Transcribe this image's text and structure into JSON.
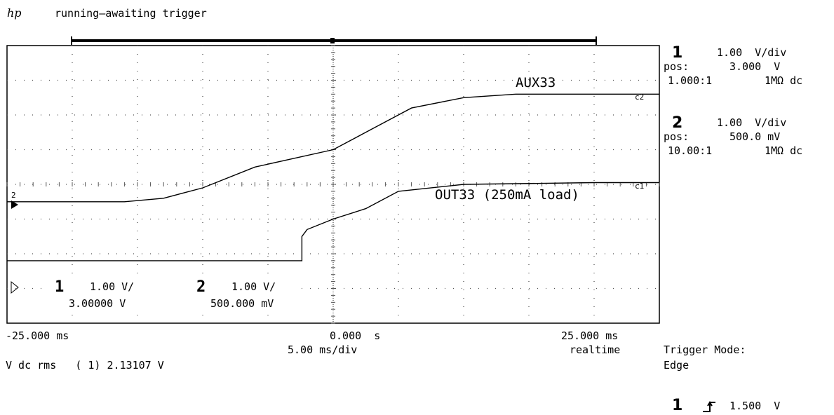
{
  "header": {
    "logo": "hp",
    "status": "running—awaiting trigger"
  },
  "right_panel": {
    "ch1": {
      "num": "1",
      "scale": "1.00  V/div",
      "pos_label": "pos:",
      "pos_value": "3.000  V",
      "probe": "1.000:1",
      "coupling": "1MΩ dc"
    },
    "ch2": {
      "num": "2",
      "scale": "1.00  V/div",
      "pos_label": "pos:",
      "pos_value": "500.0 mV",
      "probe": "10.00:1",
      "coupling": "1MΩ dc"
    },
    "trigger_mode_label": "Trigger Mode:",
    "trigger_mode_value": "Edge",
    "trigger_source": "1",
    "trigger_level": "1.500  V"
  },
  "bottom": {
    "x_left": "-25.000 ms",
    "x_center": "0.000  s",
    "x_right": "25.000 ms",
    "timebase": "5.00 ms/div",
    "acq": "realtime",
    "measurement": "V dc rms   ( 1) 2.13107 V"
  },
  "screen_labels": {
    "ch1_num": "1",
    "ch1_scale": "1.00  V/",
    "ch1_offset": "3.00000  V",
    "ch2_num": "2",
    "ch2_scale": "1.00  V/",
    "ch2_offset": "500.000 mV",
    "marker_2": "2",
    "marker_c2": "c2",
    "marker_c1": "c1"
  },
  "colors": {
    "trace": "#000000",
    "grid": "#555555",
    "background": "#ffffff"
  },
  "chart_data": {
    "type": "line",
    "title": "",
    "xlabel": "",
    "ylabel": "",
    "x_unit": "ms",
    "xlim": [
      -25,
      25
    ],
    "grid": true,
    "series": [
      {
        "name": "AUX33",
        "x": [
          -25,
          -18,
          -16,
          -13,
          -10,
          -6,
          0,
          3,
          6,
          10,
          14,
          20,
          25
        ],
        "y": [
          3.5,
          3.5,
          3.5,
          3.6,
          3.9,
          4.5,
          5.0,
          5.6,
          6.2,
          6.5,
          6.6,
          6.6,
          6.6
        ]
      },
      {
        "name": "OUT33 (250mA load)",
        "x": [
          -25,
          -10,
          -2.4,
          -2.4,
          -2.0,
          0,
          2.5,
          5,
          10,
          20,
          25
        ],
        "y": [
          1.8,
          1.8,
          1.8,
          2.5,
          2.7,
          3.0,
          3.3,
          3.8,
          4.0,
          4.05,
          4.05
        ]
      }
    ]
  }
}
